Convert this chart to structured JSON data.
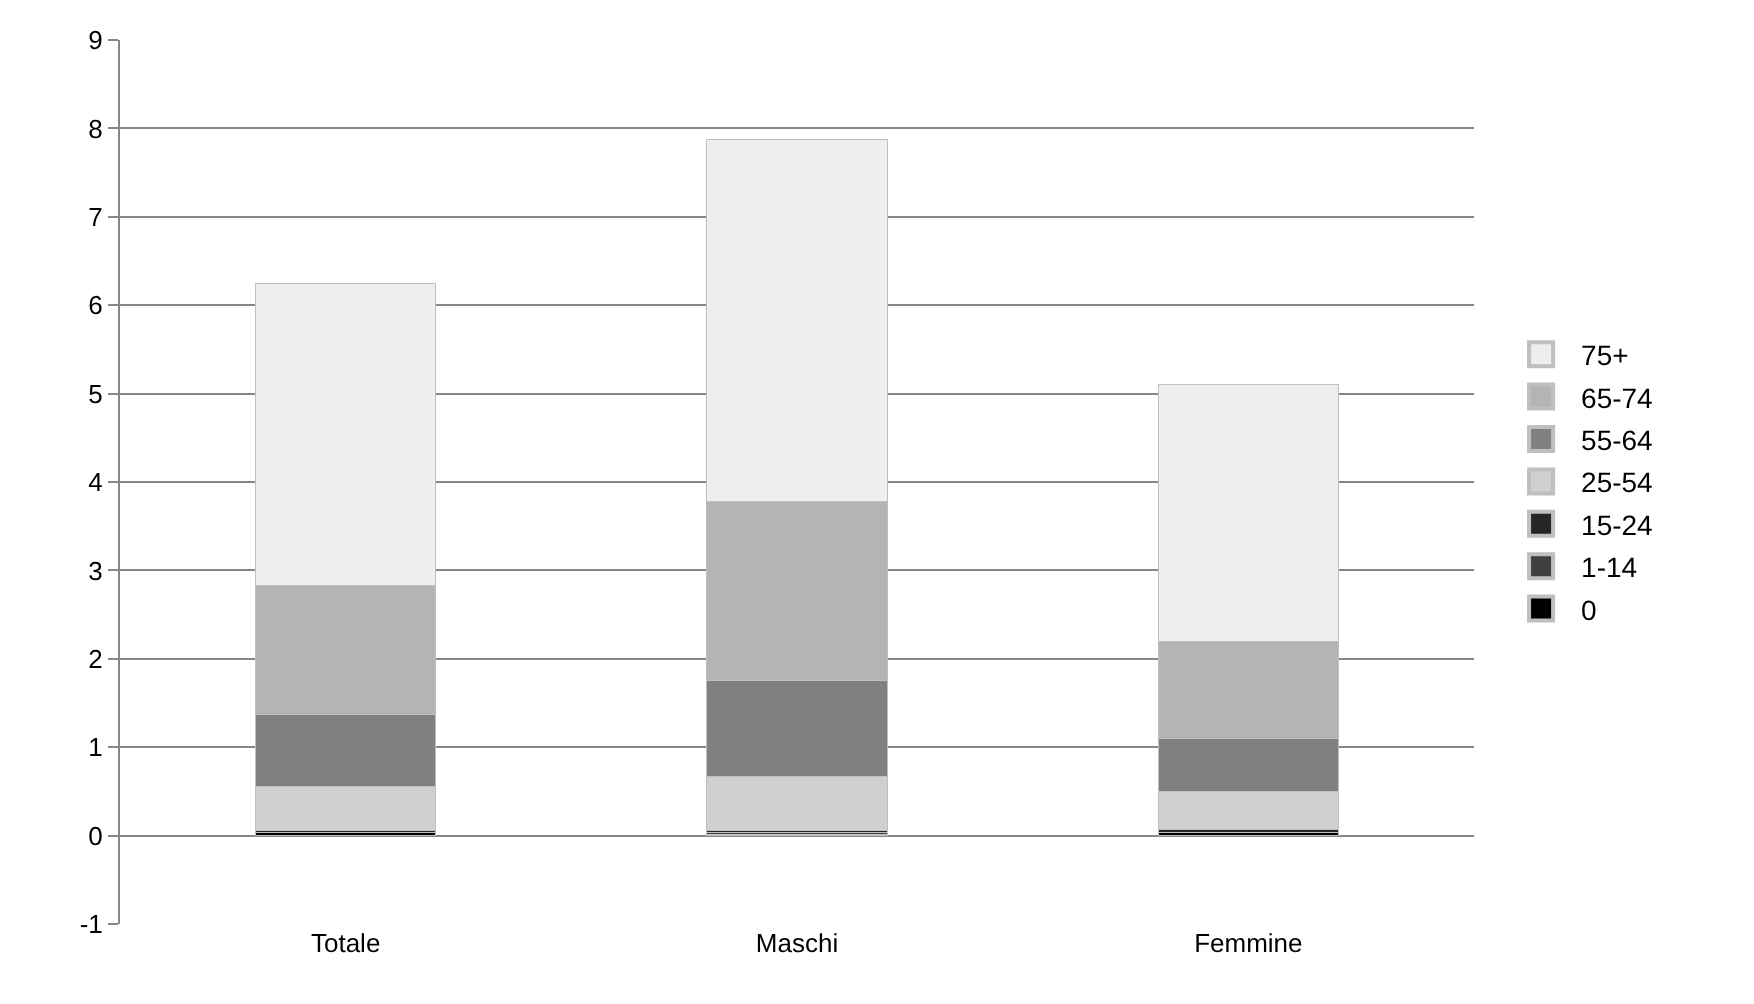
{
  "chart_data": {
    "type": "bar",
    "stacked": true,
    "categories": [
      "Totale",
      "Maschi",
      "Femmine"
    ],
    "series": [
      {
        "name": "0",
        "color": "#000000",
        "values": [
          0.03,
          0.01,
          0.03
        ]
      },
      {
        "name": "1-14",
        "color": "#404040",
        "values": [
          0.01,
          0.03,
          0.01
        ]
      },
      {
        "name": "15-24",
        "color": "#262626",
        "values": [
          0.02,
          0.02,
          0.03
        ]
      },
      {
        "name": "25-54",
        "color": "#d0d0d0",
        "values": [
          0.49,
          0.61,
          0.43
        ]
      },
      {
        "name": "55-64",
        "color": "#808080",
        "values": [
          0.82,
          1.08,
          0.6
        ]
      },
      {
        "name": "65-74",
        "color": "#b4b4b4",
        "values": [
          1.46,
          2.03,
          1.1
        ]
      },
      {
        "name": "75+",
        "color": "#eeeeee",
        "values": [
          3.42,
          4.1,
          2.9
        ]
      }
    ],
    "ylim": [
      -1,
      9
    ],
    "yticks": [
      -1,
      0,
      1,
      2,
      3,
      4,
      5,
      6,
      7,
      8,
      9
    ],
    "grid": "y",
    "legend": "right"
  }
}
